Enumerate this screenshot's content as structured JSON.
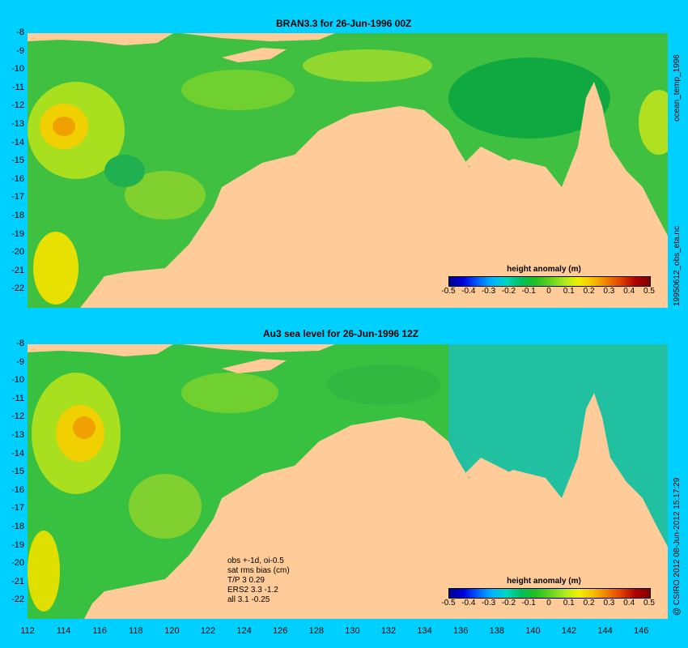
{
  "panels": [
    {
      "title": "BRAN3.3 for 26-Jun-1996 00Z",
      "side_text": "ocean_temp_1996"
    },
    {
      "title": "Au3 sea level  for 26-Jun-1996 12Z",
      "side_text": "@ CSIRO 2012   08-Jun-2012 15:17:29"
    }
  ],
  "side_text_mid": "19950612_obs_eta.nc",
  "lat_labels": [
    "-8",
    "-9",
    "-10",
    "-11",
    "-12",
    "-13",
    "-14",
    "-15",
    "-16",
    "-17",
    "-18",
    "-19",
    "-20",
    "-21",
    "-22"
  ],
  "lon_labels": [
    "112",
    "114",
    "116",
    "118",
    "120",
    "122",
    "124",
    "126",
    "128",
    "130",
    "132",
    "134",
    "136",
    "138",
    "140",
    "142",
    "144",
    "146"
  ],
  "legend": {
    "title": "height anomaly (m)",
    "ticks": [
      "-0.5",
      "-0.4",
      "-0.3",
      "-0.2",
      "-0.1",
      "0",
      "0.1",
      "0.2",
      "0.3",
      "0.4",
      "0.5"
    ]
  },
  "stats": [
    "obs +-1d, oi-0.5",
    "sat rms bias (cm)",
    "T/P  3 0.29",
    "ERS2 3.3 -1.2",
    "all 3.1 -0.25"
  ],
  "colors": {
    "background": "#00d0ff",
    "land": "#ffcc99",
    "ocean_mid": "#30c040"
  }
}
